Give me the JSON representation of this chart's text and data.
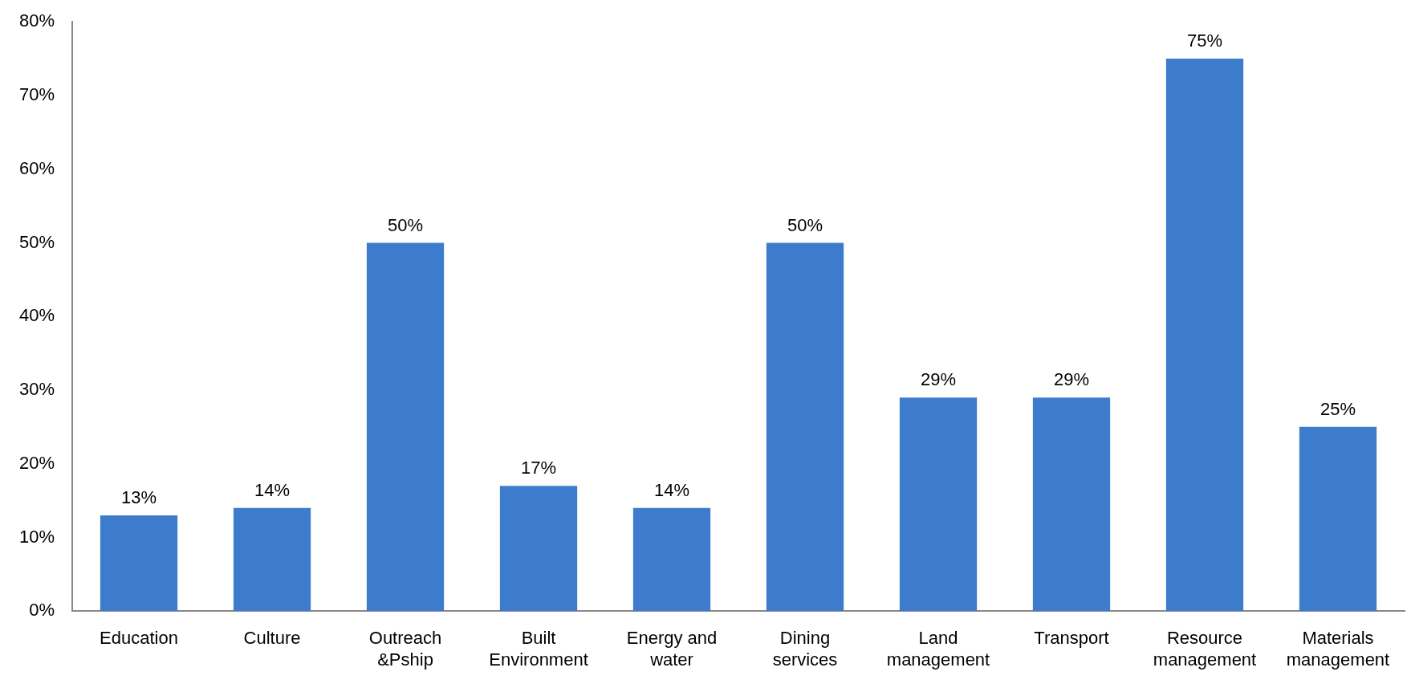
{
  "chart_data": {
    "type": "bar",
    "categories": [
      "Education",
      "Culture",
      "Outreach &Pship",
      "Built Environment",
      "Energy and water",
      "Dining services",
      "Land management",
      "Transport",
      "Resource management",
      "Materials management"
    ],
    "values": [
      13,
      14,
      50,
      17,
      14,
      50,
      29,
      29,
      75,
      25
    ],
    "value_labels": [
      "13%",
      "14%",
      "50%",
      "17%",
      "14%",
      "50%",
      "29%",
      "29%",
      "75%",
      "25%"
    ],
    "color": "#3d7bcc",
    "ylim": [
      0,
      80
    ],
    "yticks": [
      {
        "value": 0,
        "label": "0%"
      },
      {
        "value": 10,
        "label": "10%"
      },
      {
        "value": 20,
        "label": "20%"
      },
      {
        "value": 30,
        "label": "30%"
      },
      {
        "value": 40,
        "label": "40%"
      },
      {
        "value": 50,
        "label": "50%"
      },
      {
        "value": 60,
        "label": "60%"
      },
      {
        "value": 70,
        "label": "70%"
      },
      {
        "value": 80,
        "label": "80%"
      }
    ],
    "grid": false,
    "legend": false
  }
}
